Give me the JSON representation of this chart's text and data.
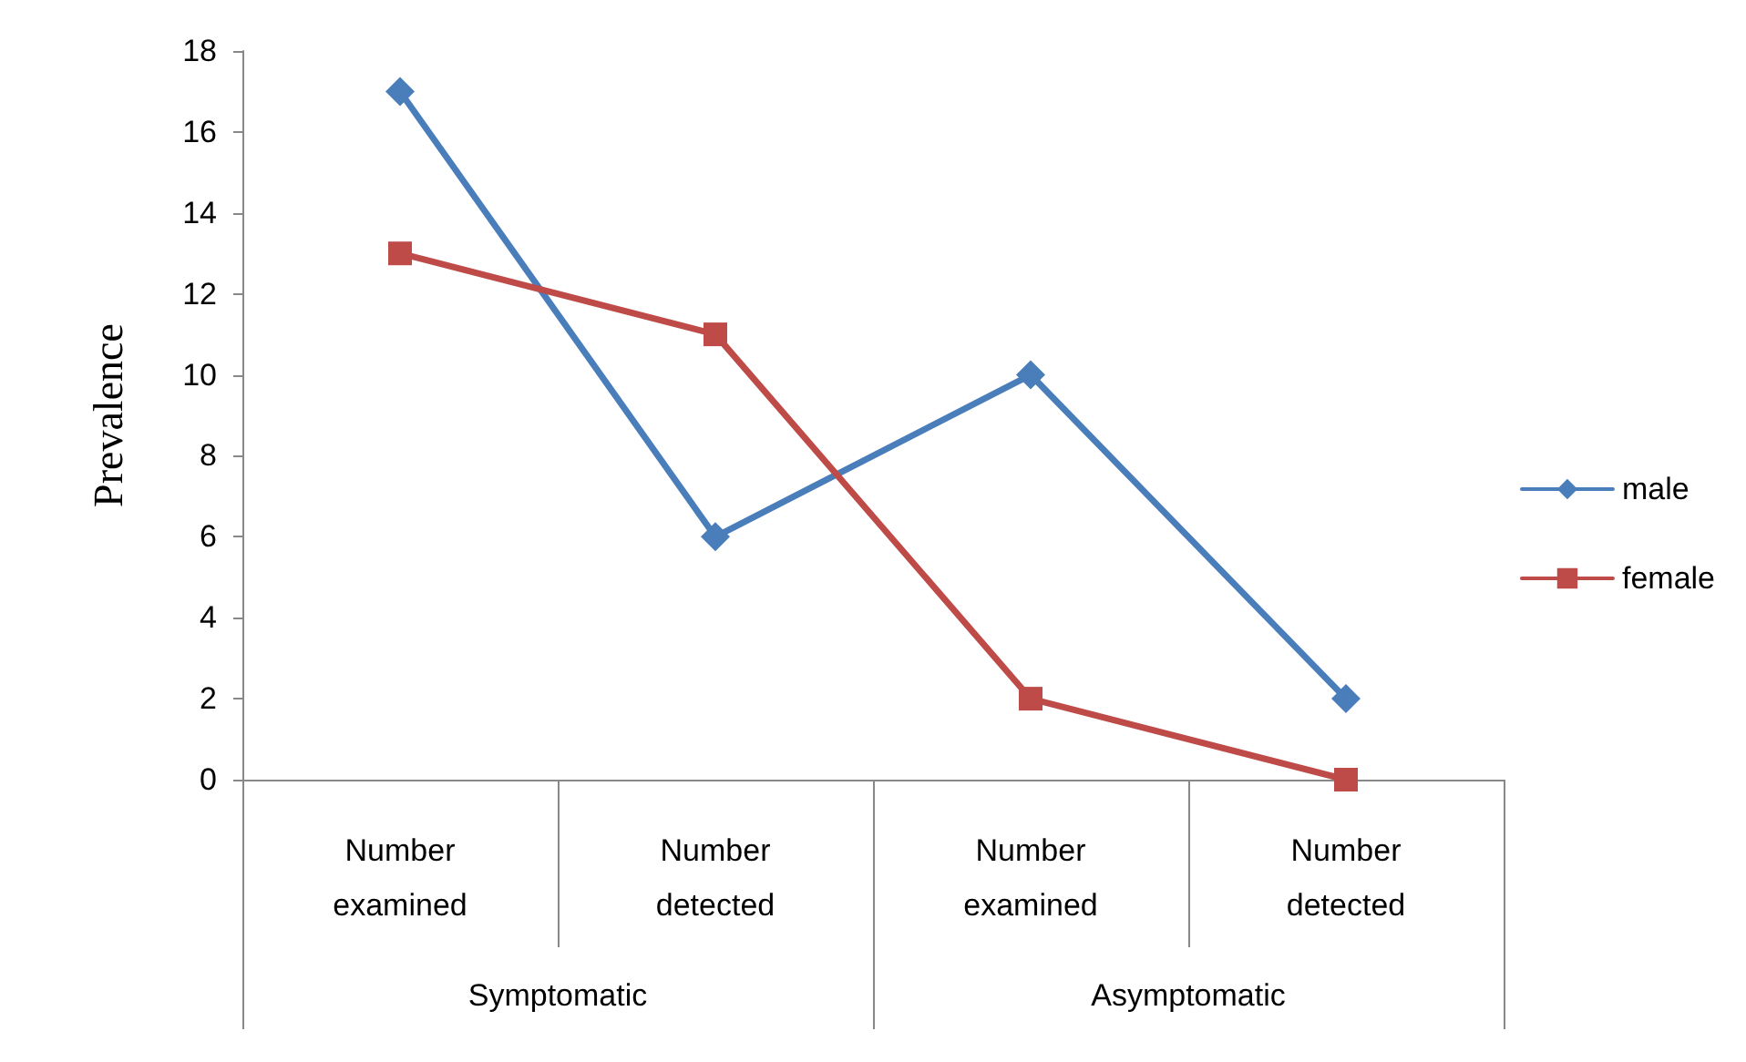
{
  "chart_data": {
    "type": "line",
    "ylabel": "Prevalence",
    "categories": [
      "Number\nexamined",
      "Number\ndetected",
      "Number\nexamined",
      "Number\ndetected"
    ],
    "annotations": [
      "Symptomatic",
      "Asymptomatic"
    ],
    "series": [
      {
        "name": "male",
        "color": "#4a7ebb",
        "marker": "diamond",
        "values": [
          17,
          6,
          10,
          2
        ]
      },
      {
        "name": "female",
        "color": "#be4b48",
        "marker": "square",
        "values": [
          13,
          11,
          2,
          0
        ]
      }
    ],
    "ylim": [
      0,
      18
    ],
    "yticks": [
      0,
      2,
      4,
      6,
      8,
      10,
      12,
      14,
      16,
      18
    ],
    "grid": false,
    "legend": "right",
    "line_style": "solid"
  }
}
